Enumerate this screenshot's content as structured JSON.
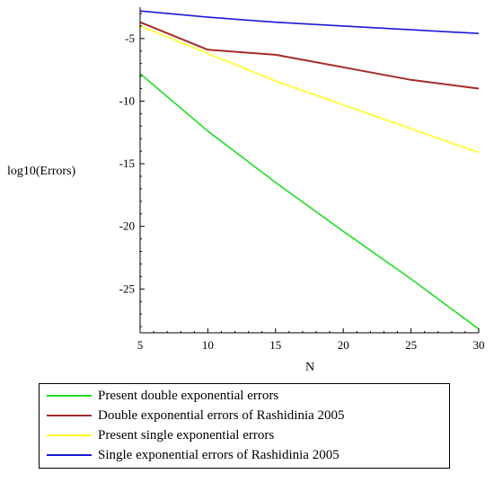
{
  "chart_data": {
    "type": "line",
    "xlabel": "N",
    "ylabel": "log10(Errors)",
    "xlim": [
      5,
      30
    ],
    "ylim": [
      -28.5,
      -2.5
    ],
    "x_ticks": [
      5,
      10,
      15,
      20,
      25,
      30
    ],
    "y_ticks": [
      -5,
      -10,
      -15,
      -20,
      -25
    ],
    "x_tick_labels": [
      "5",
      "10",
      "15",
      "20",
      "25",
      "30"
    ],
    "y_tick_labels": [
      "-5",
      "-10",
      "-15",
      "-20",
      "-25"
    ],
    "grid": false,
    "legend_position": "bottom",
    "series": [
      {
        "name": "Present double exponential errors",
        "color": "#22dd22",
        "x": [
          5,
          10,
          15,
          20,
          25,
          30
        ],
        "y": [
          -7.8,
          -12.4,
          -16.5,
          -20.4,
          -24.2,
          -28.2
        ]
      },
      {
        "name": "Double  exponential errors of Rashidinia 2005",
        "color": "#a52a2a",
        "x": [
          5,
          10,
          15,
          20,
          25,
          30
        ],
        "y": [
          -3.7,
          -5.9,
          -6.3,
          -7.3,
          -8.3,
          -9.0
        ]
      },
      {
        "name": "Present single exponential errors",
        "color": "#ffff22",
        "x": [
          5,
          10,
          15,
          20,
          25,
          30
        ],
        "y": [
          -4.0,
          -6.2,
          -8.4,
          -10.3,
          -12.2,
          -14.1
        ]
      },
      {
        "name": "Single exponential errors of Rashidinia 2005",
        "color": "#1a1ad8",
        "x": [
          5,
          10,
          15,
          20,
          25,
          30
        ],
        "y": [
          -2.8,
          -3.3,
          -3.7,
          -4.0,
          -4.3,
          -4.6
        ]
      }
    ]
  }
}
